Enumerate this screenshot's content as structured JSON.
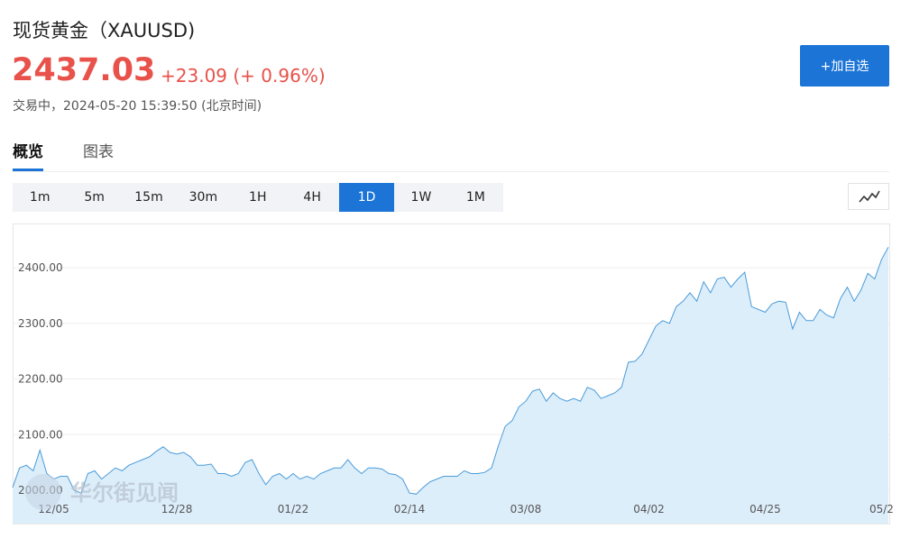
{
  "header": {
    "title": "现货黄金（XAUUSD)",
    "price": "2437.03",
    "change": "+23.09 (+ 0.96%)",
    "status": "交易中，2024-05-20 15:39:50 (北京时间)",
    "button": "+加自选"
  },
  "tabs": {
    "items": [
      "概览",
      "图表"
    ],
    "active": "概览"
  },
  "timeframes": {
    "items": [
      "1m",
      "5m",
      "15m",
      "30m",
      "1H",
      "4H",
      "1D",
      "1W",
      "1M"
    ],
    "active": "1D"
  },
  "watermark": "华尔街见闻",
  "chart_data": {
    "type": "area",
    "color": "#4a9bd8",
    "fill": "#ddeefb",
    "grid": true,
    "ylim": [
      1940,
      2478
    ],
    "yticks": [
      {
        "value": 2000,
        "label": "2000.00"
      },
      {
        "value": 2100,
        "label": "2100.00"
      },
      {
        "value": 2200,
        "label": "2200.00"
      },
      {
        "value": 2300,
        "label": "2300.00"
      },
      {
        "value": 2400,
        "label": "2400.00"
      }
    ],
    "categories": [
      null,
      null,
      null,
      null,
      null,
      null,
      "12/05",
      null,
      null,
      null,
      null,
      null,
      null,
      null,
      null,
      null,
      null,
      null,
      null,
      null,
      null,
      null,
      null,
      null,
      "12/28",
      null,
      null,
      null,
      null,
      null,
      null,
      null,
      null,
      null,
      null,
      null,
      null,
      null,
      null,
      null,
      null,
      "01/22",
      null,
      null,
      null,
      null,
      null,
      null,
      null,
      null,
      null,
      null,
      null,
      null,
      null,
      null,
      null,
      null,
      "02/14",
      null,
      null,
      null,
      null,
      null,
      null,
      null,
      null,
      null,
      null,
      null,
      null,
      null,
      null,
      null,
      null,
      "03/08",
      null,
      null,
      null,
      null,
      null,
      null,
      null,
      null,
      null,
      null,
      null,
      null,
      null,
      null,
      null,
      null,
      null,
      "04/02",
      null,
      null,
      null,
      null,
      null,
      null,
      null,
      null,
      null,
      null,
      null,
      null,
      null,
      null,
      null,
      null,
      "04/25",
      null,
      null,
      null,
      null,
      null,
      null,
      null,
      null,
      null,
      null,
      null,
      null,
      null,
      null,
      null,
      null,
      "05/2",
      null
    ],
    "values": [
      2005,
      2040,
      2045,
      2035,
      2072,
      2030,
      2020,
      2025,
      2025,
      2000,
      1995,
      2030,
      2035,
      2020,
      2030,
      2040,
      2035,
      2045,
      2050,
      2055,
      2060,
      2070,
      2078,
      2068,
      2065,
      2068,
      2060,
      2045,
      2045,
      2047,
      2030,
      2030,
      2025,
      2030,
      2050,
      2055,
      2030,
      2010,
      2025,
      2030,
      2020,
      2030,
      2020,
      2025,
      2020,
      2030,
      2035,
      2040,
      2040,
      2055,
      2040,
      2030,
      2040,
      2040,
      2038,
      2030,
      2028,
      2020,
      1995,
      1993,
      2005,
      2015,
      2020,
      2025,
      2025,
      2025,
      2035,
      2030,
      2030,
      2032,
      2040,
      2080,
      2115,
      2125,
      2150,
      2160,
      2178,
      2182,
      2160,
      2175,
      2165,
      2160,
      2165,
      2160,
      2185,
      2180,
      2165,
      2170,
      2175,
      2185,
      2230,
      2232,
      2245,
      2270,
      2295,
      2305,
      2300,
      2330,
      2340,
      2355,
      2340,
      2375,
      2355,
      2380,
      2383,
      2365,
      2380,
      2392,
      2330,
      2325,
      2320,
      2335,
      2340,
      2338,
      2290,
      2320,
      2305,
      2305,
      2325,
      2315,
      2310,
      2345,
      2365,
      2340,
      2360,
      2390,
      2380,
      2415,
      2437
    ]
  }
}
